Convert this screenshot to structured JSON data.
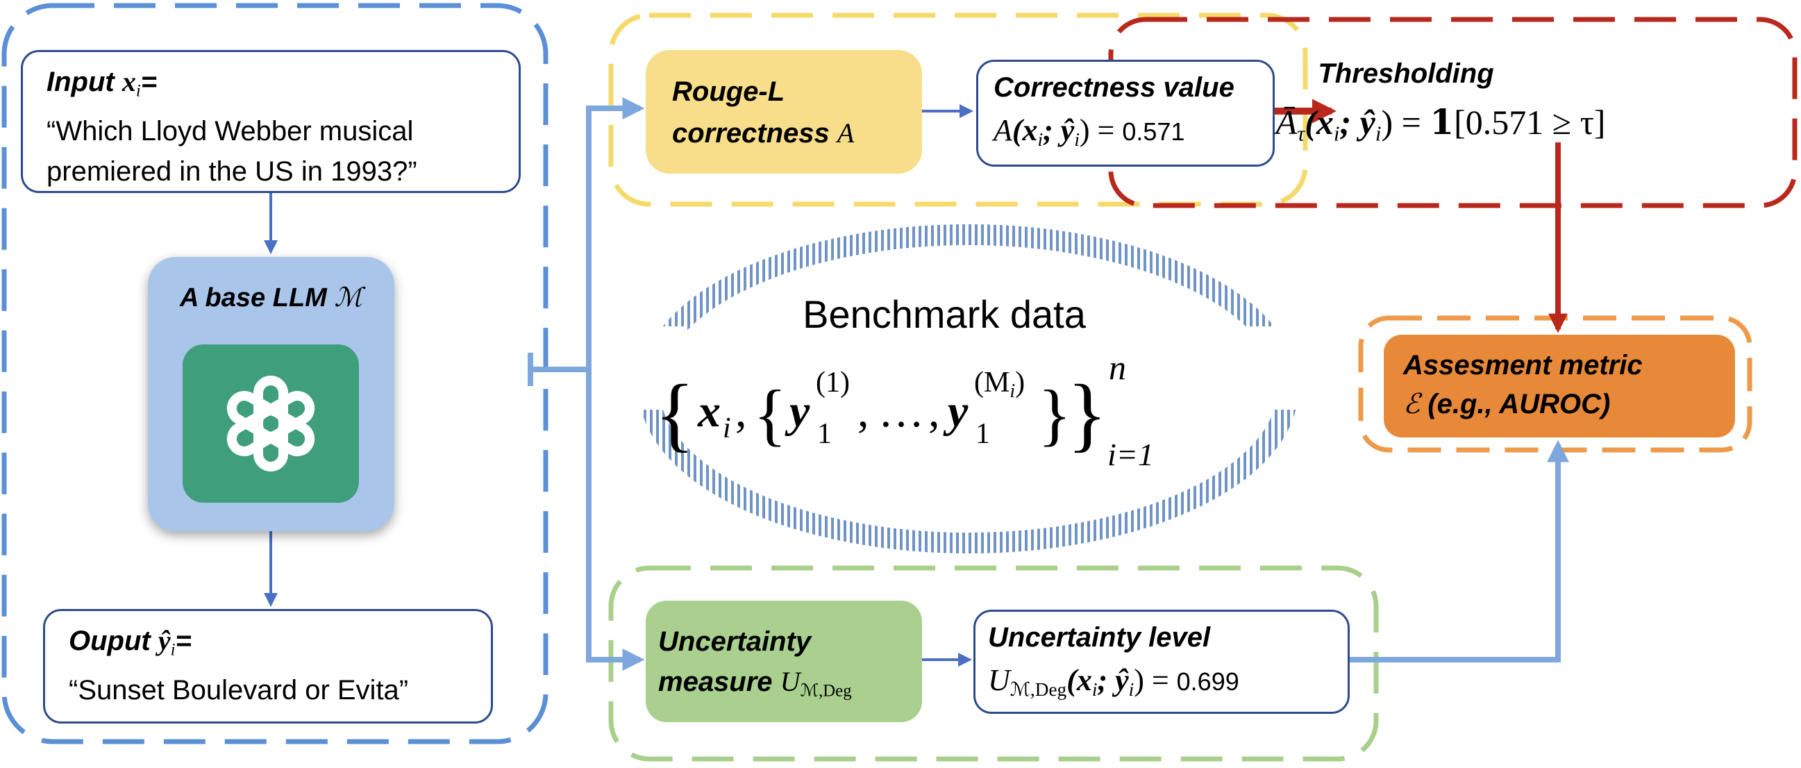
{
  "colors": {
    "input_group_border": "#5b8fd6",
    "rouge_group_border": "#f6d96b",
    "threshold_group_border": "#b8281c",
    "uncertainty_group_border": "#a9cf8c",
    "assess_group_border": "#ee9a4a",
    "llm_box": "#a9c6ea",
    "logo": "#3f9e7c",
    "rouge_box": "#f8de8a",
    "uncertainty_box": "#a9d08e",
    "assess_box": "#e8893a",
    "blue_arrow": "#7da7dd",
    "red_arrow": "#b8281c",
    "box_border": "#2e4a8c"
  },
  "input": {
    "label": "Input ",
    "var_x": "x",
    "var_sub": "i",
    "equals": "=",
    "text_line1": "“Which Lloyd Webber musical",
    "text_line2": "premiered in the US in 1993?”"
  },
  "llm": {
    "label": "A base LLM ",
    "model_symbol": "ℳ",
    "logo_icon": "openai-logo-icon"
  },
  "output": {
    "label": "Ouput ",
    "var_y": "ŷ",
    "var_sub": "i",
    "equals": "=",
    "text": "“Sunset Boulevard or Evita”"
  },
  "rouge": {
    "line1": "Rouge-L",
    "line2": "correctness ",
    "symbol": "A"
  },
  "correctness": {
    "title": "Correctness value",
    "formula_prefix": "A",
    "formula_args": "(x",
    "formula_sub": "i",
    "formula_sep": "; ŷ",
    "formula_sub2": "i",
    "formula_close": ") = ",
    "value": "0.571"
  },
  "thresholding": {
    "title": "Thresholding",
    "formula_a": "Ā",
    "formula_tau_sub": "τ",
    "formula_args": "(x",
    "formula_sub": "i",
    "formula_sep": "; ŷ",
    "formula_sub2": "i",
    "formula_close": ") = ",
    "indicator": "𝟏",
    "bracket": "[0.571 ≥ τ]"
  },
  "benchmark": {
    "title": "Benchmark data",
    "x": "x",
    "x_sub": "i",
    "y": "y",
    "y_sub": "1",
    "y_sup1": "(1)",
    "y_supM": "(M",
    "y_supM_sub": "i",
    "y_supM_close": ")",
    "dots": "…",
    "upper": "n",
    "lower": "i=1"
  },
  "uncertainty": {
    "line1": "Uncertainty",
    "line2": "measure ",
    "symbol": "U",
    "symbol_sub": "ℳ,Deg"
  },
  "uncertainty_level": {
    "title": "Uncertainty level",
    "symbol": "U",
    "symbol_sub": "ℳ,Deg",
    "formula_args": "(x",
    "formula_sub": "i",
    "formula_sep": "; ŷ",
    "formula_sub2": "i",
    "formula_close": ") = ",
    "value": "0.699"
  },
  "assessment": {
    "line1": "Assesment metric",
    "symbol": "ℰ",
    "line2": " (e.g., AUROC)"
  }
}
